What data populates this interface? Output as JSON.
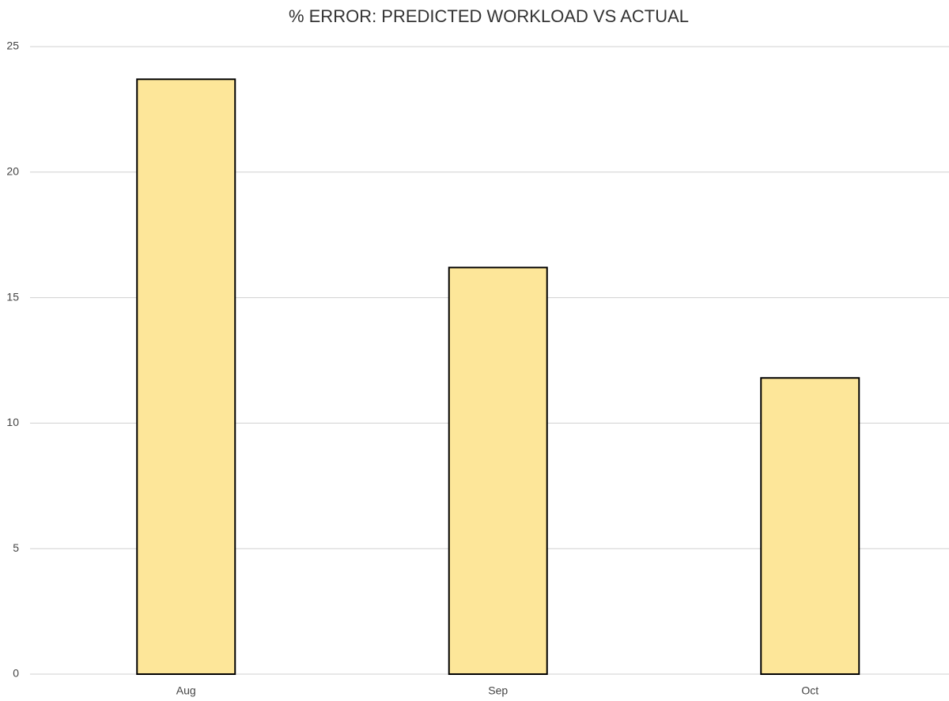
{
  "chart_data": {
    "type": "bar",
    "title": "% ERROR: PREDICTED WORKLOAD VS ACTUAL",
    "categories": [
      "Aug",
      "Sep",
      "Oct"
    ],
    "values": [
      23.7,
      16.2,
      11.8
    ],
    "color": "#fde699",
    "ylim": [
      0,
      25
    ],
    "yticks": [
      0,
      5,
      10,
      15,
      20,
      25
    ],
    "grid": true
  }
}
